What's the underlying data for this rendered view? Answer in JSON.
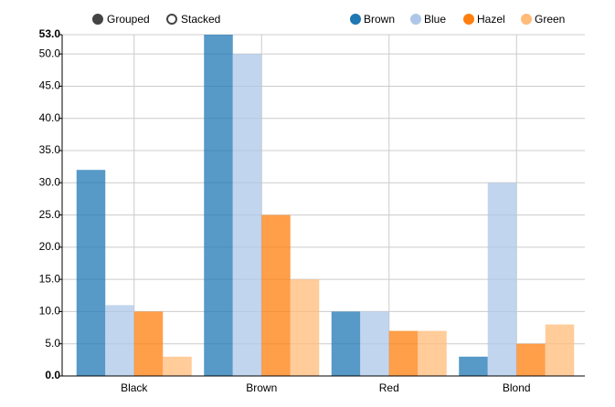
{
  "chart_data": {
    "type": "bar",
    "controls": [
      "Grouped",
      "Stacked"
    ],
    "categories": [
      "Black",
      "Brown",
      "Red",
      "Blond"
    ],
    "series": [
      {
        "name": "Brown",
        "color": "#1f77b4",
        "values": [
          32,
          53,
          10,
          3
        ]
      },
      {
        "name": "Blue",
        "color": "#aec7e8",
        "values": [
          11,
          50,
          10,
          30
        ]
      },
      {
        "name": "Hazel",
        "color": "#ff7f0e",
        "values": [
          10,
          25,
          7,
          5
        ]
      },
      {
        "name": "Green",
        "color": "#ffbb78",
        "values": [
          3,
          15,
          7,
          8
        ]
      }
    ],
    "ylim": [
      0,
      53
    ],
    "yticks": [
      {
        "value": 0,
        "label": "0.0"
      },
      {
        "value": 5,
        "label": "5.0"
      },
      {
        "value": 10,
        "label": "10.0"
      },
      {
        "value": 15,
        "label": "15.0"
      },
      {
        "value": 20,
        "label": "20.0"
      },
      {
        "value": 25,
        "label": "25.0"
      },
      {
        "value": 30,
        "label": "30.0"
      },
      {
        "value": 35,
        "label": "35.0"
      },
      {
        "value": 40,
        "label": "40.0"
      },
      {
        "value": 45,
        "label": "45.0"
      },
      {
        "value": 50,
        "label": "50.0"
      },
      {
        "value": 53,
        "label": "53.0"
      }
    ],
    "grid": true
  }
}
